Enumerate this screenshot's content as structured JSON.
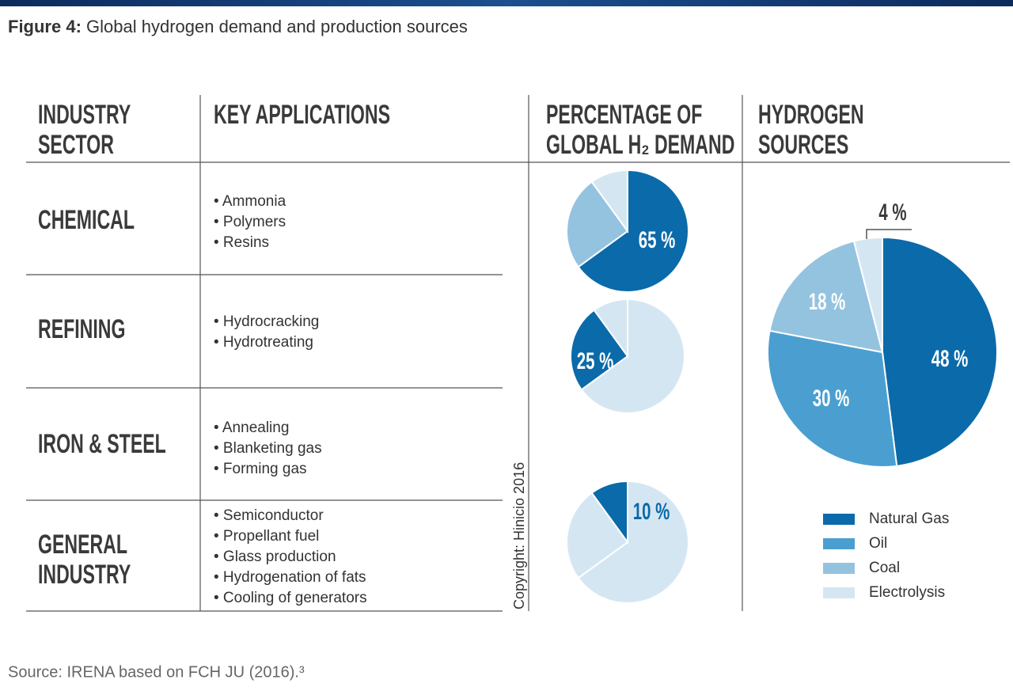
{
  "header": {
    "label": "Figure 4:",
    "title": "Global hydrogen demand and production sources"
  },
  "table": {
    "columns": [
      [
        "INDUSTRY",
        "SECTOR"
      ],
      [
        "KEY APPLICATIONS"
      ],
      [
        "PERCENTAGE OF",
        "GLOBAL H₂ DEMAND"
      ],
      [
        "HYDROGEN",
        "SOURCES"
      ]
    ],
    "rows": [
      {
        "sector": [
          "CHEMICAL"
        ],
        "applications": [
          "• Ammonia",
          "• Polymers",
          "• Resins"
        ]
      },
      {
        "sector": [
          "REFINING"
        ],
        "applications": [
          "• Hydrocracking",
          "• Hydrotreating"
        ]
      },
      {
        "sector": [
          "IRON & STEEL"
        ],
        "applications": [
          "• Annealing",
          "• Blanketing gas",
          "• Forming gas"
        ]
      },
      {
        "sector": [
          "GENERAL",
          "INDUSTRY"
        ],
        "applications": [
          "• Semiconductor",
          "• Propellant fuel",
          "• Glass production",
          "• Hydrogenation of fats",
          "• Cooling of generators"
        ]
      }
    ]
  },
  "chart_data": [
    {
      "type": "pie",
      "values": [
        65,
        25,
        10
      ],
      "highlight": 0,
      "value_label": "65 %",
      "colors": [
        "#0b6aa9",
        "#94c3df",
        "#d5e6f3"
      ]
    },
    {
      "type": "pie",
      "values": [
        65,
        25,
        10
      ],
      "highlight": 1,
      "value_label": "25 %",
      "colors": [
        "#d5e6f3",
        "#0b6aa9",
        "#d5e6f3"
      ]
    },
    {
      "type": "pie",
      "values": [
        65,
        25,
        10
      ],
      "highlight": 2,
      "value_label": "10 %",
      "colors": [
        "#d5e6f3",
        "#d5e6f3",
        "#0b6aa9"
      ]
    },
    {
      "type": "pie",
      "categories": [
        "Natural Gas",
        "Oil",
        "Coal",
        "Electrolysis"
      ],
      "values": [
        48,
        30,
        18,
        4
      ],
      "value_labels": [
        "48 %",
        "30 %",
        "18 %",
        "4 %"
      ],
      "colors": [
        "#0b6aa9",
        "#4a9fd0",
        "#94c3df",
        "#d5e6f3"
      ],
      "legend": "bottom-right"
    }
  ],
  "credit": "Copyright: Hinicio 2016",
  "source": "Source: IRENA based on FCH JU (2016).³"
}
